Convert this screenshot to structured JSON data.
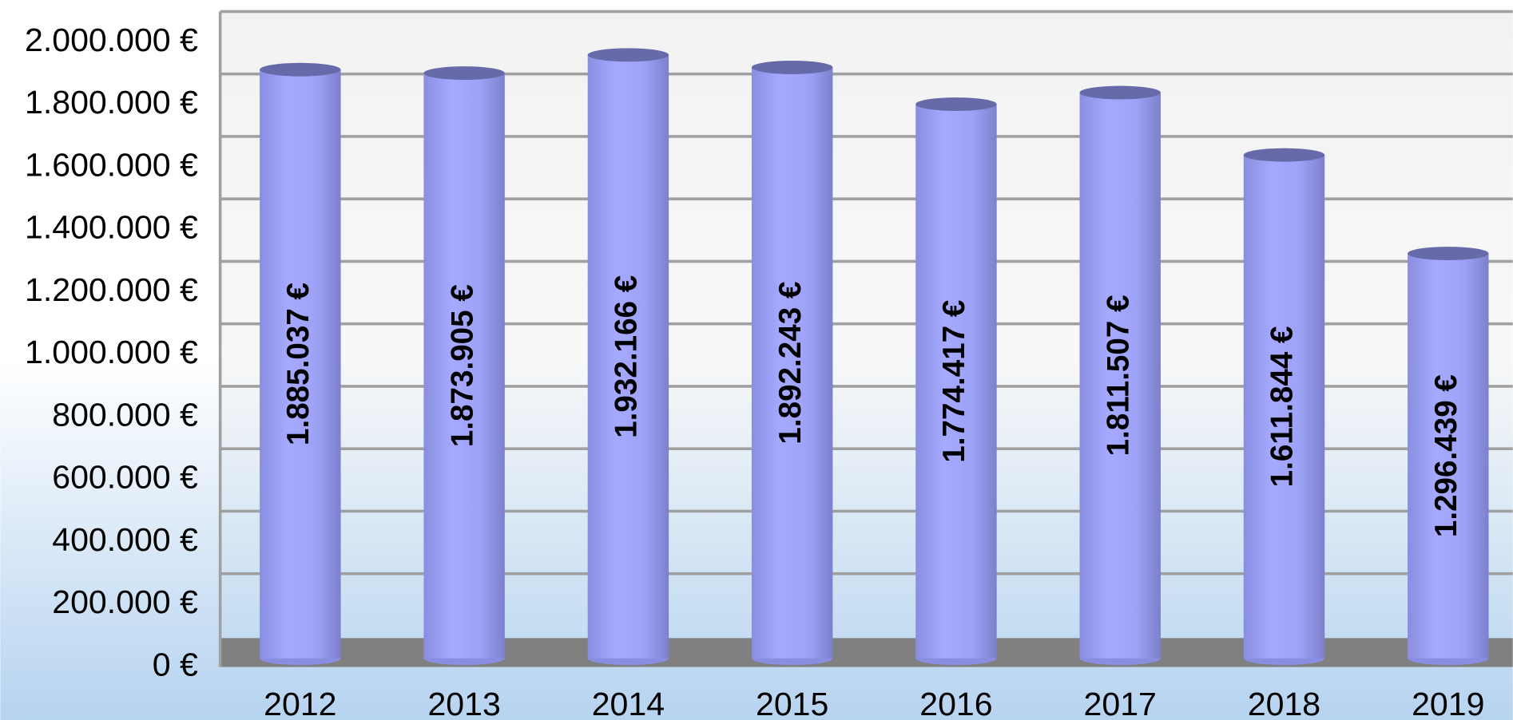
{
  "chart_data": {
    "type": "bar",
    "categories": [
      "2012",
      "2013",
      "2014",
      "2015",
      "2016",
      "2017",
      "2018",
      "2019"
    ],
    "values": [
      1885037,
      1873905,
      1932166,
      1892243,
      1774417,
      1811507,
      1611844,
      1296439
    ],
    "value_labels": [
      "1.885.037 €",
      "1.873.905 €",
      "1.932.166 €",
      "1.892.243 €",
      "1.774.417 €",
      "1.811.507 €",
      "1.611.844 €",
      "1.296.439 €"
    ],
    "color": "#a0a4fa",
    "ylim": [
      0,
      2000000
    ],
    "yticks": [
      {
        "value": 0,
        "label": "0 €"
      },
      {
        "value": 200000,
        "label": "200.000 €"
      },
      {
        "value": 400000,
        "label": "400.000 €"
      },
      {
        "value": 600000,
        "label": "600.000 €"
      },
      {
        "value": 800000,
        "label": "800.000 €"
      },
      {
        "value": 1000000,
        "label": "1.000.000 €"
      },
      {
        "value": 1200000,
        "label": "1.200.000 €"
      },
      {
        "value": 1400000,
        "label": "1.400.000 €"
      },
      {
        "value": 1600000,
        "label": "1.600.000 €"
      },
      {
        "value": 1800000,
        "label": "1.800.000 €"
      },
      {
        "value": 2000000,
        "label": "2.000.000 €"
      }
    ],
    "grid": true
  }
}
